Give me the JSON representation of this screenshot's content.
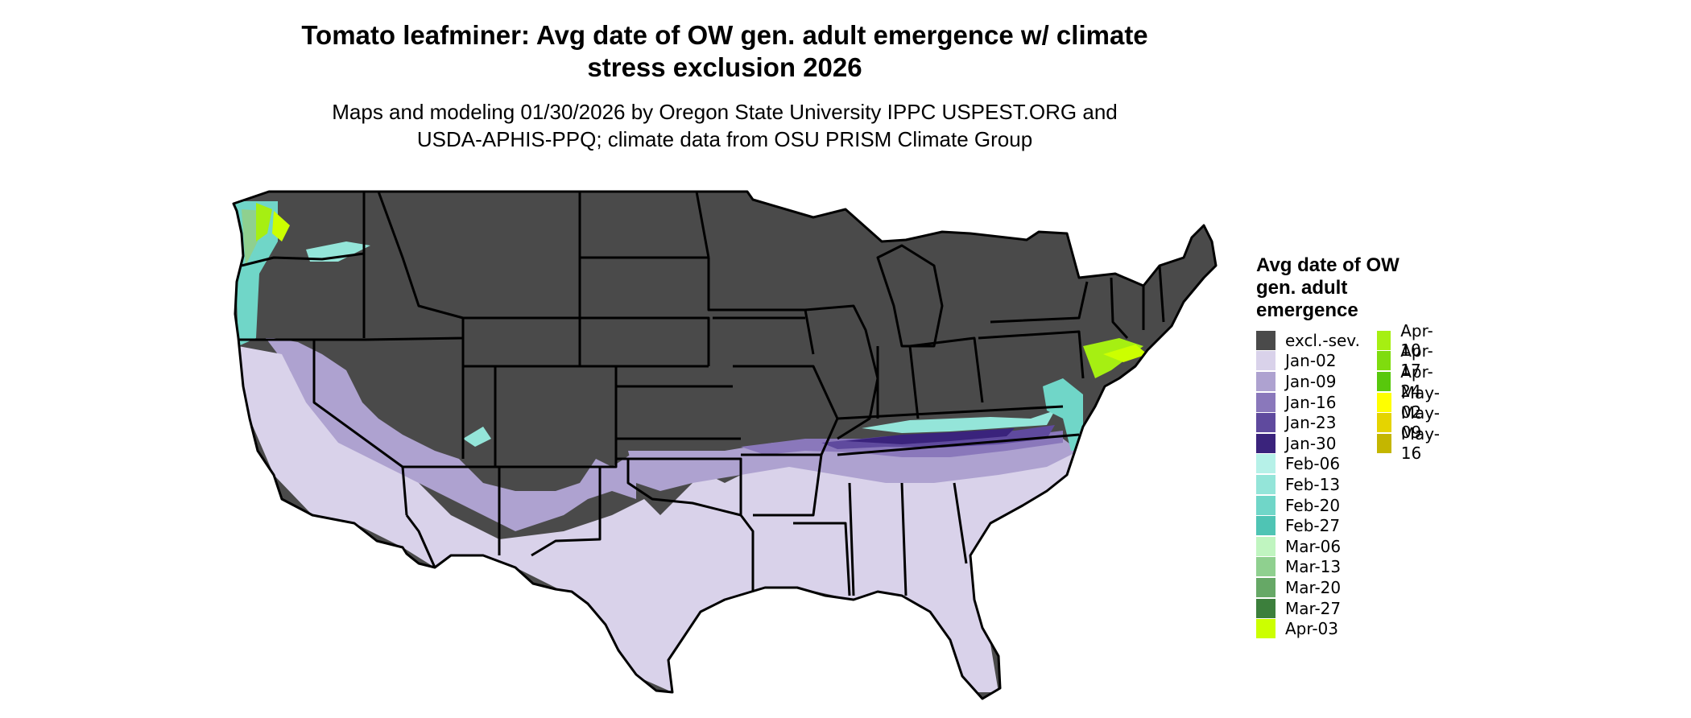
{
  "title_line1": "Tomato leafminer: Avg date of OW gen. adult emergence w/ climate",
  "title_line2": "stress exclusion 2026",
  "subtitle_line1": "Maps and modeling 01/30/2026 by Oregon State University IPPC USPEST.ORG and",
  "subtitle_line2": "USDA-APHIS-PPQ; climate data from OSU PRISM Climate Group",
  "legend": {
    "title": "Avg date of OW gen. adult emergence",
    "items": [
      {
        "label": "excl.-sev.",
        "color": "#4a4a4a"
      },
      {
        "label": "Jan-02",
        "color": "#d9d2ea"
      },
      {
        "label": "Jan-09",
        "color": "#aea2d0"
      },
      {
        "label": "Jan-16",
        "color": "#8a78bb"
      },
      {
        "label": "Jan-23",
        "color": "#5f4a9e"
      },
      {
        "label": "Jan-30",
        "color": "#3a237c"
      },
      {
        "label": "Feb-06",
        "color": "#b6f1e8"
      },
      {
        "label": "Feb-13",
        "color": "#94e5d9"
      },
      {
        "label": "Feb-20",
        "color": "#70d6c8"
      },
      {
        "label": "Feb-27",
        "color": "#4fc4b4"
      },
      {
        "label": "Mar-06",
        "color": "#c0f5c0"
      },
      {
        "label": "Mar-13",
        "color": "#8fd08f"
      },
      {
        "label": "Mar-20",
        "color": "#66a866"
      },
      {
        "label": "Mar-27",
        "color": "#3c7f3c"
      },
      {
        "label": "Apr-03",
        "color": "#ccff00"
      },
      {
        "label": "Apr-10",
        "color": "#a6ef12"
      },
      {
        "label": "Apr-17",
        "color": "#7fdc0e"
      },
      {
        "label": "Apr-24",
        "color": "#58c80c"
      },
      {
        "label": "May-02",
        "color": "#ffff00"
      },
      {
        "label": "May-09",
        "color": "#e5d400"
      },
      {
        "label": "May-16",
        "color": "#c4b600"
      }
    ]
  }
}
